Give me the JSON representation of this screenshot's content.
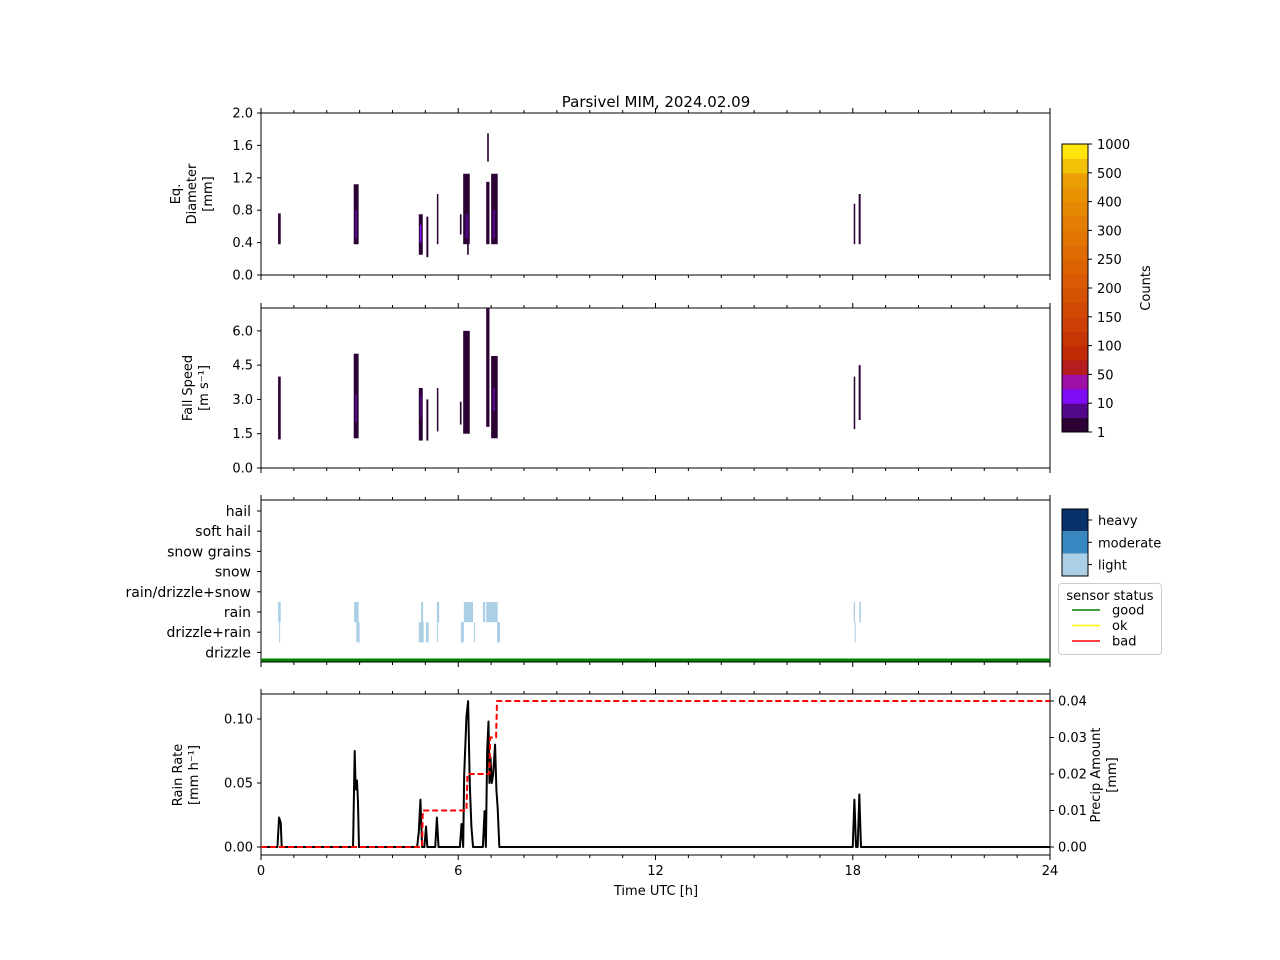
{
  "chart_data": [
    {
      "type": "heatmap",
      "title": "Parsivel MIM, 2024.02.09",
      "ylabel": "Eq.\nDiameter\n[mm]",
      "ylim": [
        0,
        2.0
      ],
      "yticks": [
        "0.0",
        "0.4",
        "0.8",
        "1.2",
        "1.6",
        "2.0"
      ],
      "xlim": [
        0,
        24
      ],
      "colorbar": {
        "label": "Counts",
        "ticks": [
          "1",
          "10",
          "50",
          "100",
          "150",
          "200",
          "250",
          "300",
          "400",
          "500",
          "1000"
        ],
        "colors": [
          "#2b0233",
          "#52078a",
          "#7e0cf5",
          "#9f10a6",
          "#b51d1f",
          "#c22a06",
          "#c83505",
          "#cd3f04",
          "#d14803",
          "#d55103",
          "#d95a02",
          "#dc6302",
          "#df6c02",
          "#e27502",
          "#e47e02",
          "#e68802",
          "#e99202",
          "#ec9f02",
          "#f2c006",
          "#ffe50a"
        ]
      },
      "columns": [
        {
          "t": [
            0.52,
            0.6
          ],
          "range": [
            0.38,
            0.76
          ],
          "level": 0
        },
        {
          "t": [
            2.82,
            2.97
          ],
          "range": [
            0.38,
            1.12
          ],
          "level": 0
        },
        {
          "t": [
            2.86,
            2.92
          ],
          "range": [
            0.45,
            0.8
          ],
          "level": 1
        },
        {
          "t": [
            4.8,
            4.92
          ],
          "range": [
            0.25,
            0.75
          ],
          "level": 0
        },
        {
          "t": [
            4.83,
            4.88
          ],
          "range": [
            0.4,
            0.62
          ],
          "level": 2
        },
        {
          "t": [
            5.03,
            5.09
          ],
          "range": [
            0.22,
            0.72
          ],
          "level": 0
        },
        {
          "t": [
            5.35,
            5.39
          ],
          "range": [
            0.38,
            1.0
          ],
          "level": 0
        },
        {
          "t": [
            6.05,
            6.1
          ],
          "range": [
            0.5,
            0.75
          ],
          "level": 0
        },
        {
          "t": [
            6.15,
            6.35
          ],
          "range": [
            0.38,
            1.25
          ],
          "level": 0
        },
        {
          "t": [
            6.22,
            6.3
          ],
          "range": [
            0.45,
            0.75
          ],
          "level": 1
        },
        {
          "t": [
            6.27,
            6.32
          ],
          "range": [
            0.25,
            0.4
          ],
          "level": 0
        },
        {
          "t": [
            6.85,
            6.95
          ],
          "range": [
            0.38,
            1.15
          ],
          "level": 0
        },
        {
          "t": [
            6.88,
            6.93
          ],
          "range": [
            1.4,
            1.75
          ],
          "level": 0
        },
        {
          "t": [
            7.0,
            7.2
          ],
          "range": [
            0.38,
            1.25
          ],
          "level": 0
        },
        {
          "t": [
            7.05,
            7.12
          ],
          "range": [
            0.45,
            0.8
          ],
          "level": 1
        },
        {
          "t": [
            18.03,
            18.07
          ],
          "range": [
            0.38,
            0.88
          ],
          "level": 0
        },
        {
          "t": [
            18.18,
            18.24
          ],
          "range": [
            0.38,
            1.0
          ],
          "level": 0
        }
      ]
    },
    {
      "type": "heatmap",
      "ylabel": "Fall Speed\n[m s⁻¹]",
      "ylim": [
        0,
        7.0
      ],
      "yticks": [
        "0.0",
        "1.5",
        "3.0",
        "4.5",
        "6.0"
      ],
      "xlim": [
        0,
        24
      ],
      "columns": [
        {
          "t": [
            0.52,
            0.6
          ],
          "range": [
            1.25,
            4.0
          ],
          "level": 0
        },
        {
          "t": [
            2.82,
            2.97
          ],
          "range": [
            1.3,
            5.0
          ],
          "level": 0
        },
        {
          "t": [
            2.86,
            2.92
          ],
          "range": [
            2.0,
            3.2
          ],
          "level": 1
        },
        {
          "t": [
            4.8,
            4.92
          ],
          "range": [
            1.2,
            3.5
          ],
          "level": 0
        },
        {
          "t": [
            4.84,
            4.88
          ],
          "range": [
            2.2,
            3.2
          ],
          "level": 1
        },
        {
          "t": [
            5.03,
            5.09
          ],
          "range": [
            1.2,
            3.0
          ],
          "level": 0
        },
        {
          "t": [
            5.35,
            5.39
          ],
          "range": [
            1.6,
            3.5
          ],
          "level": 0
        },
        {
          "t": [
            6.05,
            6.1
          ],
          "range": [
            1.9,
            2.9
          ],
          "level": 0
        },
        {
          "t": [
            6.15,
            6.35
          ],
          "range": [
            1.5,
            6.0
          ],
          "level": 0
        },
        {
          "t": [
            6.85,
            6.95
          ],
          "range": [
            1.8,
            7.0
          ],
          "level": 0
        },
        {
          "t": [
            7.0,
            7.2
          ],
          "range": [
            1.3,
            4.9
          ],
          "level": 0
        },
        {
          "t": [
            7.05,
            7.12
          ],
          "range": [
            2.5,
            3.5
          ],
          "level": 1
        },
        {
          "t": [
            18.03,
            18.07
          ],
          "range": [
            1.7,
            4.0
          ],
          "level": 0
        },
        {
          "t": [
            18.18,
            18.24
          ],
          "range": [
            2.1,
            4.5
          ],
          "level": 0
        }
      ]
    },
    {
      "type": "heatmap",
      "categories": [
        "hail",
        "soft hail",
        "snow grains",
        "snow",
        "rain/drizzle+snow",
        "rain",
        "drizzle+rain",
        "drizzle"
      ],
      "intensity_legend": {
        "labels": [
          "heavy",
          "moderate",
          "light"
        ],
        "colors": [
          "#08306b",
          "#3787c0",
          "#abd0e6"
        ]
      },
      "sensor_status_legend": {
        "title": "sensor status",
        "labels": [
          "good",
          "ok",
          "bad"
        ],
        "colors": [
          "#008000",
          "#ffff00",
          "#ff0000"
        ]
      },
      "sensor_status": "good",
      "events": [
        {
          "category": "rain",
          "t": [
            0.52,
            0.6
          ],
          "intensity": "light"
        },
        {
          "category": "rain",
          "t": [
            2.83,
            2.97
          ],
          "intensity": "light"
        },
        {
          "category": "rain",
          "t": [
            4.87,
            4.93
          ],
          "intensity": "light"
        },
        {
          "category": "rain",
          "t": [
            5.35,
            5.42
          ],
          "intensity": "light"
        },
        {
          "category": "rain",
          "t": [
            6.17,
            6.45
          ],
          "intensity": "light"
        },
        {
          "category": "rain",
          "t": [
            6.75,
            6.82
          ],
          "intensity": "light"
        },
        {
          "category": "rain",
          "t": [
            6.85,
            7.2
          ],
          "intensity": "light"
        },
        {
          "category": "rain",
          "t": [
            18.03,
            18.07
          ],
          "intensity": "light"
        },
        {
          "category": "rain",
          "t": [
            18.2,
            18.25
          ],
          "intensity": "light"
        },
        {
          "category": "drizzle+rain",
          "t": [
            0.55,
            0.58
          ],
          "intensity": "light"
        },
        {
          "category": "drizzle+rain",
          "t": [
            2.9,
            3.0
          ],
          "intensity": "light"
        },
        {
          "category": "drizzle+rain",
          "t": [
            4.8,
            4.95
          ],
          "intensity": "light"
        },
        {
          "category": "drizzle+rain",
          "t": [
            5.02,
            5.1
          ],
          "intensity": "light"
        },
        {
          "category": "drizzle+rain",
          "t": [
            5.35,
            5.38
          ],
          "intensity": "light"
        },
        {
          "category": "drizzle+rain",
          "t": [
            6.08,
            6.17
          ],
          "intensity": "light"
        },
        {
          "category": "drizzle+rain",
          "t": [
            6.48,
            6.51
          ],
          "intensity": "light"
        },
        {
          "category": "drizzle+rain",
          "t": [
            7.18,
            7.27
          ],
          "intensity": "light"
        },
        {
          "category": "drizzle+rain",
          "t": [
            18.06,
            18.09
          ],
          "intensity": "light"
        }
      ]
    },
    {
      "type": "line",
      "xlabel": "Time UTC [h]",
      "xlim": [
        0,
        24
      ],
      "xticks": [
        "0",
        "6",
        "12",
        "18",
        "24"
      ],
      "ylabel": "Rain Rate\n[mm h⁻¹]",
      "ylim": [
        -0.005,
        0.12
      ],
      "yticks": [
        "0.00",
        "0.05",
        "0.10"
      ],
      "y2label": "Precip Amount\n[mm]",
      "y2lim": [
        -0.0015,
        0.042
      ],
      "y2ticks": [
        "0.00",
        "0.01",
        "0.02",
        "0.03",
        "0.04"
      ],
      "series": [
        {
          "axis": "left",
          "color": "#000000",
          "style": "solid",
          "points": [
            [
              0,
              0
            ],
            [
              0.5,
              0
            ],
            [
              0.55,
              0.023
            ],
            [
              0.6,
              0.019
            ],
            [
              0.63,
              0
            ],
            [
              2.8,
              0
            ],
            [
              2.85,
              0.075
            ],
            [
              2.88,
              0.045
            ],
            [
              2.92,
              0.052
            ],
            [
              2.95,
              0.035
            ],
            [
              2.98,
              0
            ],
            [
              4.75,
              0
            ],
            [
              4.8,
              0.012
            ],
            [
              4.85,
              0.037
            ],
            [
              4.9,
              0
            ],
            [
              4.97,
              0
            ],
            [
              5.02,
              0.016
            ],
            [
              5.06,
              0
            ],
            [
              5.3,
              0
            ],
            [
              5.35,
              0.023
            ],
            [
              5.4,
              0
            ],
            [
              6.05,
              0
            ],
            [
              6.1,
              0.018
            ],
            [
              6.15,
              0
            ],
            [
              6.18,
              0.056
            ],
            [
              6.25,
              0.102
            ],
            [
              6.3,
              0.114
            ],
            [
              6.35,
              0.05
            ],
            [
              6.4,
              0.016
            ],
            [
              6.45,
              0
            ],
            [
              6.75,
              0
            ],
            [
              6.8,
              0.028
            ],
            [
              6.84,
              0
            ],
            [
              6.88,
              0.075
            ],
            [
              6.92,
              0.098
            ],
            [
              6.95,
              0.05
            ],
            [
              6.98,
              0.07
            ],
            [
              7.02,
              0.05
            ],
            [
              7.06,
              0.056
            ],
            [
              7.12,
              0.08
            ],
            [
              7.16,
              0.045
            ],
            [
              7.2,
              0.03
            ],
            [
              7.25,
              0
            ],
            [
              18.0,
              0
            ],
            [
              18.05,
              0.037
            ],
            [
              18.1,
              0
            ],
            [
              18.15,
              0
            ],
            [
              18.2,
              0.041
            ],
            [
              18.25,
              0
            ],
            [
              24,
              0
            ]
          ]
        },
        {
          "axis": "right",
          "color": "#ff0000",
          "style": "dashed",
          "points": [
            [
              0,
              0
            ],
            [
              4.9,
              0
            ],
            [
              4.92,
              0.01
            ],
            [
              6.25,
              0.01
            ],
            [
              6.28,
              0.02
            ],
            [
              6.95,
              0.02
            ],
            [
              6.97,
              0.03
            ],
            [
              7.15,
              0.03
            ],
            [
              7.18,
              0.04
            ],
            [
              24,
              0.04
            ]
          ]
        }
      ]
    }
  ]
}
